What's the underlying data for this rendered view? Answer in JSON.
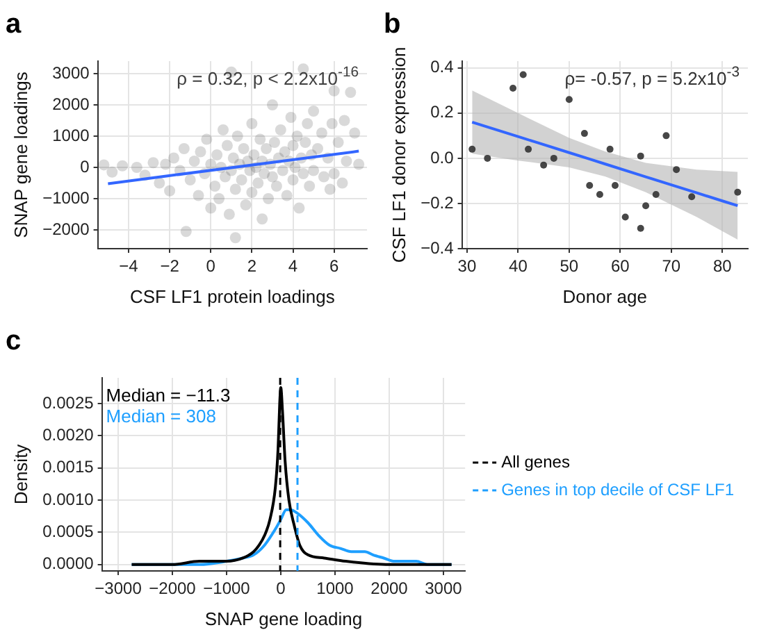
{
  "chart_data": [
    {
      "type": "scatter",
      "title": "a",
      "xlabel": "CSF LF1 protein loadings",
      "ylabel": "SNAP gene loadings",
      "annotations": [
        "ρ = 0.32, p < 2.2x10$^{-16}$"
      ],
      "xlim": [
        -5.5,
        7.6
      ],
      "ylim": [
        -2600,
        3400
      ],
      "xticks": [
        {
          "value": -4,
          "label": "−4"
        },
        {
          "value": -2,
          "label": "−2"
        },
        0,
        2,
        4,
        6
      ],
      "yticks": [
        {
          "value": -2000,
          "label": "−2000"
        },
        {
          "value": -1000,
          "label": "−1000"
        },
        0,
        1000,
        2000,
        3000
      ],
      "grid": true,
      "marker": "circle",
      "series": [
        {
          "color": "#404040",
          "x": [
            -5.2,
            -4.8,
            -4.3,
            -3.6,
            -3.2,
            -2.8,
            -2.5,
            -2.2,
            -2,
            -1.8,
            -1.5,
            -1.3,
            -1.2,
            -1,
            -0.8,
            -0.6,
            -0.5,
            -0.3,
            -0.2,
            0,
            0,
            0.2,
            0.3,
            0.4,
            0.5,
            0.6,
            0.7,
            0.8,
            0.9,
            1,
            1,
            1.1,
            1.2,
            1.2,
            1.3,
            1.4,
            1.5,
            1.6,
            1.7,
            1.8,
            1.9,
            2,
            2,
            2.1,
            2.2,
            2.3,
            2.4,
            2.5,
            2.5,
            2.6,
            2.7,
            2.8,
            2.9,
            3,
            3,
            3.1,
            3.2,
            3.3,
            3.4,
            3.5,
            3.6,
            3.7,
            3.8,
            3.9,
            4,
            4,
            4.1,
            4.2,
            4.3,
            4.4,
            4.5,
            4.5,
            4.6,
            4.7,
            4.8,
            4.9,
            5,
            5,
            5.2,
            5.4,
            5.5,
            5.7,
            5.9,
            6,
            6,
            6.2,
            6.5,
            6.6,
            6.8,
            7,
            7.2,
            5.8,
            6.4
          ],
          "values": [
            80,
            -150,
            50,
            0,
            -250,
            150,
            -500,
            100,
            -750,
            300,
            -100,
            600,
            -2050,
            -400,
            200,
            -900,
            500,
            -200,
            900,
            -1300,
            100,
            -600,
            400,
            -1000,
            0,
            1200,
            -300,
            700,
            -1500,
            3050,
            -100,
            300,
            -2250,
            -700,
            1000,
            100,
            -400,
            600,
            -1200,
            200,
            -100,
            1400,
            -800,
            400,
            0,
            -500,
            900,
            -1650,
            200,
            -200,
            600,
            -1000,
            100,
            2000,
            -300,
            800,
            -600,
            300,
            1200,
            -100,
            500,
            -900,
            200,
            1600,
            -400,
            700,
            0,
            1000,
            -1300,
            300,
            3150,
            -200,
            800,
            1400,
            -600,
            400,
            1800,
            -100,
            600,
            1100,
            -300,
            300,
            1400,
            2450,
            -200,
            800,
            1500,
            200,
            2400,
            1100,
            100,
            -700,
            -500
          ]
        },
        {
          "type": "line",
          "marker": "none",
          "color": "#3366ff",
          "x": [
            -5,
            7.2
          ],
          "values": [
            -520,
            520
          ]
        }
      ]
    },
    {
      "type": "scatter",
      "title": "b",
      "xlabel": "Donor age",
      "ylabel": "CSF LF1 donor expression",
      "annotations": [
        "ρ= -0.57, p = 5.2x10$^{-3}$"
      ],
      "xlim": [
        29,
        85
      ],
      "ylim": [
        -0.4,
        0.43
      ],
      "xticks": [
        30,
        40,
        50,
        60,
        70,
        80
      ],
      "yticks": [
        {
          "value": -0.4,
          "label": "−0.4"
        },
        {
          "value": -0.2,
          "label": "−0.2"
        },
        {
          "value": 0,
          "label": "0.0"
        },
        {
          "value": 0.2,
          "label": "0.2"
        },
        {
          "value": 0.4,
          "label": "0.4"
        }
      ],
      "grid": true,
      "marker": "circle",
      "series": [
        {
          "color": "#333333",
          "x": [
            31,
            34,
            39,
            41,
            42,
            45,
            47,
            50,
            53,
            54,
            56,
            58,
            59,
            61,
            64,
            64,
            65,
            67,
            69,
            71,
            74,
            83
          ],
          "values": [
            0.04,
            0,
            0.31,
            0.37,
            0.04,
            -0.03,
            0,
            0.26,
            0.11,
            -0.12,
            -0.16,
            0.04,
            -0.12,
            -0.26,
            0.01,
            -0.31,
            -0.21,
            -0.16,
            0.1,
            -0.05,
            -0.17,
            -0.15
          ]
        },
        {
          "type": "line",
          "marker": "none",
          "color": "#3366ff",
          "x": [
            31,
            40,
            50,
            57,
            65,
            75,
            83
          ],
          "values": [
            0.16,
            0.096,
            0.025,
            -0.025,
            -0.082,
            -0.153,
            -0.21
          ],
          "lower": [
            0.02,
            -0.01,
            -0.04,
            -0.08,
            -0.15,
            -0.26,
            -0.36
          ],
          "upper": [
            0.3,
            0.2,
            0.09,
            0.03,
            -0.02,
            -0.05,
            -0.06
          ]
        }
      ]
    },
    {
      "type": "line",
      "title": "c",
      "xlabel": "SNAP gene loading",
      "ylabel": "Density",
      "annotations": [
        "Median = −11.3",
        "Median = 308"
      ],
      "xlim": [
        -3300,
        3400
      ],
      "ylim": [
        -0.0001,
        0.0029
      ],
      "xticks": [
        {
          "value": -3000,
          "label": "−3000"
        },
        {
          "value": -2000,
          "label": "−2000"
        },
        {
          "value": -1000,
          "label": "−1000"
        },
        0,
        1000,
        2000,
        3000
      ],
      "yticks": [
        {
          "value": 0,
          "label": "0.0000"
        },
        {
          "value": 0.0005,
          "label": "0.0005"
        },
        {
          "value": 0.001,
          "label": "0.0010"
        },
        {
          "value": 0.0015,
          "label": "0.0015"
        },
        {
          "value": 0.002,
          "label": "0.0020"
        },
        {
          "value": 0.0025,
          "label": "0.0025"
        }
      ],
      "grid": true,
      "legend": "right",
      "marker": "none",
      "ref_lines": [
        {
          "axis": "x",
          "value": -11.3,
          "color": "#000000",
          "line_style": "dashed"
        },
        {
          "axis": "x",
          "value": 308,
          "color": "#1e9fff",
          "line_style": "dashed"
        }
      ],
      "series": [
        {
          "name": "All genes",
          "color": "#000000",
          "x": [
            -2750,
            -2000,
            -1500,
            -1000,
            -700,
            -500,
            -400,
            -300,
            -200,
            -100,
            -50,
            -20,
            0,
            30,
            80,
            150,
            250,
            350,
            500,
            800,
            1200,
            2000,
            2500,
            3150
          ],
          "values": [
            0,
            0,
            5e-05,
            5e-05,
            0.0001,
            0.0002,
            0.0003,
            0.00045,
            0.0007,
            0.0012,
            0.0018,
            0.0025,
            0.00275,
            0.0024,
            0.0016,
            0.001,
            0.0006,
            0.0003,
            0.00015,
            0.0001,
            5e-05,
            0,
            0,
            0
          ]
        },
        {
          "name": "Genes in top decile of CSF LF1",
          "color": "#1e9fff",
          "x": [
            -2750,
            -1500,
            -1000,
            -700,
            -500,
            -300,
            -100,
            0,
            100,
            180,
            300,
            500,
            700,
            900,
            1100,
            1300,
            1550,
            1700,
            1900,
            2100,
            2300,
            2500,
            2700,
            3150
          ],
          "values": [
            0,
            0,
            5e-05,
            0.0001,
            0.00015,
            0.0003,
            0.00055,
            0.0007,
            0.00085,
            0.00085,
            0.0008,
            0.00065,
            0.00045,
            0.0003,
            0.00025,
            0.0002,
            0.0002,
            0.00015,
            0.0001,
            5e-05,
            5e-05,
            5e-05,
            0,
            0
          ]
        }
      ]
    }
  ]
}
